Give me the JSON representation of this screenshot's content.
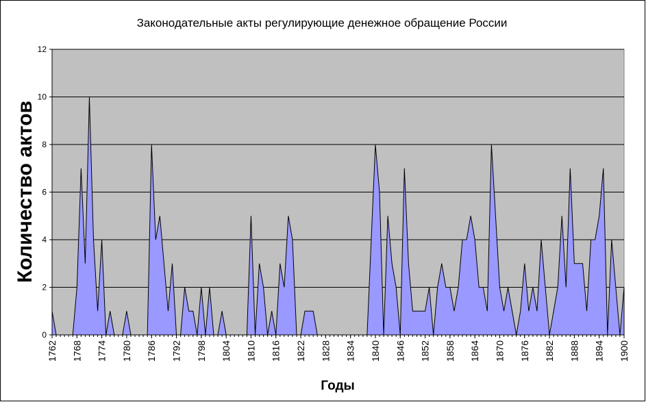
{
  "chart_data": {
    "type": "area",
    "title": "Законодательные акты регулирующие денежное обращение России",
    "ylabel": "Количество актов",
    "xlabel": "Годы",
    "x": [
      1762,
      1763,
      1764,
      1765,
      1766,
      1767,
      1768,
      1769,
      1770,
      1771,
      1772,
      1773,
      1774,
      1775,
      1776,
      1777,
      1778,
      1779,
      1780,
      1781,
      1782,
      1783,
      1784,
      1785,
      1786,
      1787,
      1788,
      1789,
      1790,
      1791,
      1792,
      1793,
      1794,
      1795,
      1796,
      1797,
      1798,
      1799,
      1800,
      1801,
      1802,
      1803,
      1804,
      1805,
      1806,
      1807,
      1808,
      1809,
      1810,
      1811,
      1812,
      1813,
      1814,
      1815,
      1816,
      1817,
      1818,
      1819,
      1820,
      1821,
      1822,
      1823,
      1824,
      1825,
      1826,
      1827,
      1828,
      1829,
      1830,
      1831,
      1832,
      1833,
      1834,
      1835,
      1836,
      1837,
      1838,
      1839,
      1840,
      1841,
      1842,
      1843,
      1844,
      1845,
      1846,
      1847,
      1848,
      1849,
      1850,
      1851,
      1852,
      1853,
      1854,
      1855,
      1856,
      1857,
      1858,
      1859,
      1860,
      1861,
      1862,
      1863,
      1864,
      1865,
      1866,
      1867,
      1868,
      1869,
      1870,
      1871,
      1872,
      1873,
      1874,
      1875,
      1876,
      1877,
      1878,
      1879,
      1880,
      1881,
      1882,
      1883,
      1884,
      1885,
      1886,
      1887,
      1888,
      1889,
      1890,
      1891,
      1892,
      1893,
      1894,
      1895,
      1896,
      1897,
      1898,
      1899,
      1900
    ],
    "values": [
      1,
      0,
      0,
      0,
      0,
      0,
      2,
      7,
      3,
      10,
      4,
      1,
      4,
      0,
      1,
      0,
      0,
      0,
      1,
      0,
      0,
      0,
      0,
      0,
      8,
      4,
      5,
      3,
      1,
      3,
      0,
      0,
      2,
      1,
      1,
      0,
      2,
      0,
      2,
      0,
      0,
      1,
      0,
      0,
      0,
      0,
      0,
      0,
      5,
      0,
      3,
      2,
      0,
      1,
      0,
      3,
      2,
      5,
      4,
      0,
      0,
      1,
      1,
      1,
      0,
      0,
      0,
      0,
      0,
      0,
      0,
      0,
      0,
      0,
      0,
      0,
      0,
      4,
      8,
      6,
      0,
      5,
      3,
      2,
      0,
      7,
      3,
      1,
      1,
      1,
      1,
      2,
      0,
      2,
      3,
      2,
      2,
      1,
      2,
      4,
      4,
      5,
      4,
      2,
      2,
      1,
      8,
      5,
      2,
      1,
      2,
      1,
      0,
      1,
      3,
      1,
      2,
      1,
      4,
      2,
      0,
      1,
      2,
      5,
      2,
      7,
      3,
      3,
      3,
      1,
      4,
      4,
      5,
      7,
      0,
      4,
      2,
      0,
      2
    ],
    "color": "#9999ff",
    "xlim": [
      1762,
      1900
    ],
    "xticks": [
      1762,
      1768,
      1774,
      1780,
      1786,
      1792,
      1798,
      1804,
      1810,
      1816,
      1822,
      1828,
      1834,
      1840,
      1846,
      1852,
      1858,
      1864,
      1870,
      1876,
      1882,
      1888,
      1894,
      1900
    ],
    "ylim": [
      0,
      12
    ],
    "yticks": [
      0,
      2,
      4,
      6,
      8,
      10,
      12
    ],
    "grid": true
  }
}
